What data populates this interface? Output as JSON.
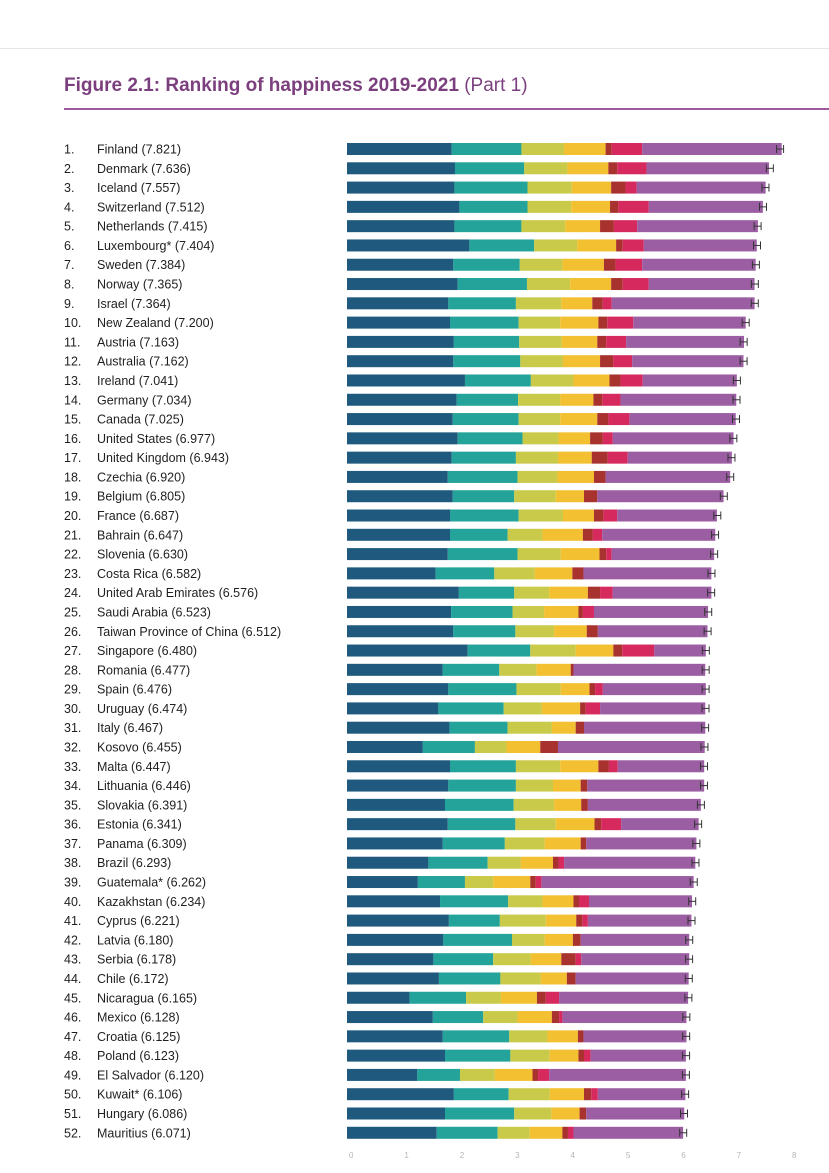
{
  "title": {
    "main": "Figure 2.1: Ranking of happiness 2019-2021",
    "part": "(Part 1)"
  },
  "colors": {
    "title": "#7b3f7e",
    "segments": [
      "#1f5a7e",
      "#23a39a",
      "#c9c94a",
      "#f2c030",
      "#a8322e",
      "#d62a5f",
      "#9b5ea3"
    ],
    "error_bar": "#333333"
  },
  "chart_data": {
    "type": "bar",
    "orientation": "horizontal",
    "stacked": true,
    "x_ticks": [
      "0",
      "1",
      "2",
      "3",
      "4",
      "5",
      "6",
      "7",
      "8"
    ],
    "xlim": [
      0,
      8
    ],
    "rows": [
      {
        "rank": "1.",
        "label": "Finland (7.821)",
        "value": 7.821,
        "segments": [
          1.89,
          1.26,
          0.77,
          0.75,
          0.11,
          0.55,
          2.52
        ]
      },
      {
        "rank": "2.",
        "label": "Denmark (7.636)",
        "value": 7.636,
        "segments": [
          1.95,
          1.25,
          0.78,
          0.74,
          0.16,
          0.53,
          2.21
        ]
      },
      {
        "rank": "3.",
        "label": "Iceland (7.557)",
        "value": 7.557,
        "segments": [
          1.94,
          1.32,
          0.8,
          0.71,
          0.26,
          0.2,
          2.33
        ]
      },
      {
        "rank": "4.",
        "label": "Switzerland (7.512)",
        "value": 7.512,
        "segments": [
          2.03,
          1.23,
          0.79,
          0.7,
          0.15,
          0.55,
          2.06
        ]
      },
      {
        "rank": "5.",
        "label": "Netherlands (7.415)",
        "value": 7.415,
        "segments": [
          1.94,
          1.21,
          0.79,
          0.63,
          0.25,
          0.42,
          2.18
        ]
      },
      {
        "rank": "6.",
        "label": "Luxembourg* (7.404)",
        "value": 7.404,
        "segments": [
          2.21,
          1.17,
          0.78,
          0.7,
          0.12,
          0.38,
          2.04
        ]
      },
      {
        "rank": "7.",
        "label": "Sweden (7.384)",
        "value": 7.384,
        "segments": [
          1.92,
          1.2,
          0.77,
          0.75,
          0.21,
          0.48,
          2.05
        ]
      },
      {
        "rank": "8.",
        "label": "Norway (7.365)",
        "value": 7.365,
        "segments": [
          2.0,
          1.25,
          0.78,
          0.74,
          0.21,
          0.47,
          1.91
        ]
      },
      {
        "rank": "9.",
        "label": "Israel (7.364)",
        "value": 7.364,
        "segments": [
          1.83,
          1.22,
          0.82,
          0.56,
          0.19,
          0.16,
          2.58
        ]
      },
      {
        "rank": "10.",
        "label": "New Zealand (7.200)",
        "value": 7.2,
        "segments": [
          1.86,
          1.24,
          0.75,
          0.69,
          0.16,
          0.47,
          2.03
        ]
      },
      {
        "rank": "11.",
        "label": "Austria (7.163)",
        "value": 7.163,
        "segments": [
          1.93,
          1.18,
          0.77,
          0.64,
          0.16,
          0.36,
          2.13
        ]
      },
      {
        "rank": "12.",
        "label": "Australia (7.162)",
        "value": 7.162,
        "segments": [
          1.92,
          1.21,
          0.77,
          0.67,
          0.24,
          0.34,
          2.01
        ]
      },
      {
        "rank": "13.",
        "label": "Ireland (7.041)",
        "value": 7.041,
        "segments": [
          2.13,
          1.19,
          0.77,
          0.65,
          0.2,
          0.4,
          1.7
        ]
      },
      {
        "rank": "14.",
        "label": "Germany (7.034)",
        "value": 7.034,
        "segments": [
          1.98,
          1.11,
          0.76,
          0.6,
          0.16,
          0.33,
          2.09
        ]
      },
      {
        "rank": "15.",
        "label": "Canada (7.025)",
        "value": 7.025,
        "segments": [
          1.91,
          1.19,
          0.75,
          0.67,
          0.2,
          0.38,
          1.92
        ]
      },
      {
        "rank": "16.",
        "label": "United States (6.977)",
        "value": 6.977,
        "segments": [
          2.0,
          1.17,
          0.65,
          0.57,
          0.23,
          0.18,
          2.18
        ]
      },
      {
        "rank": "17.",
        "label": "United Kingdom (6.943)",
        "value": 6.943,
        "segments": [
          1.89,
          1.16,
          0.76,
          0.61,
          0.29,
          0.36,
          1.88
        ]
      },
      {
        "rank": "18.",
        "label": "Czechia (6.920)",
        "value": 6.92,
        "segments": [
          1.82,
          1.26,
          0.72,
          0.66,
          0.21,
          0.0,
          2.25
        ]
      },
      {
        "rank": "19.",
        "label": "Belgium (6.805)",
        "value": 6.805,
        "segments": [
          1.91,
          1.11,
          0.75,
          0.51,
          0.24,
          0.0,
          2.28
        ]
      },
      {
        "rank": "20.",
        "label": "France (6.687)",
        "value": 6.687,
        "segments": [
          1.86,
          1.24,
          0.8,
          0.56,
          0.17,
          0.25,
          1.8
        ]
      },
      {
        "rank": "21.",
        "label": "Bahrain (6.647)",
        "value": 6.647,
        "segments": [
          1.86,
          1.04,
          0.63,
          0.73,
          0.18,
          0.17,
          2.04
        ]
      },
      {
        "rank": "22.",
        "label": "Slovenia (6.630)",
        "value": 6.63,
        "segments": [
          1.82,
          1.26,
          0.78,
          0.7,
          0.12,
          0.1,
          1.85
        ]
      },
      {
        "rank": "23.",
        "label": "Costa Rica (6.582)",
        "value": 6.582,
        "segments": [
          1.6,
          1.06,
          0.73,
          0.68,
          0.2,
          0.0,
          2.31
        ]
      },
      {
        "rank": "24.",
        "label": "United Arab Emirates (6.576)",
        "value": 6.576,
        "segments": [
          2.02,
          1.0,
          0.63,
          0.7,
          0.22,
          0.23,
          1.78
        ]
      },
      {
        "rank": "25.",
        "label": "Saudi Arabia (6.523)",
        "value": 6.523,
        "segments": [
          1.88,
          1.11,
          0.57,
          0.62,
          0.08,
          0.2,
          2.06
        ]
      },
      {
        "rank": "26.",
        "label": "Taiwan Province of China (6.512)",
        "value": 6.512,
        "segments": [
          1.92,
          1.12,
          0.7,
          0.59,
          0.2,
          0.0,
          1.98
        ]
      },
      {
        "rank": "27.",
        "label": "Singapore (6.480)",
        "value": 6.48,
        "segments": [
          2.18,
          1.13,
          0.82,
          0.68,
          0.16,
          0.58,
          0.93
        ]
      },
      {
        "rank": "28.",
        "label": "Romania (6.477)",
        "value": 6.477,
        "segments": [
          1.73,
          1.02,
          0.67,
          0.62,
          0.05,
          0.0,
          2.38
        ]
      },
      {
        "rank": "29.",
        "label": "Spain (6.476)",
        "value": 6.476,
        "segments": [
          1.83,
          1.23,
          0.8,
          0.52,
          0.1,
          0.14,
          1.86
        ]
      },
      {
        "rank": "30.",
        "label": "Uruguay (6.474)",
        "value": 6.474,
        "segments": [
          1.65,
          1.18,
          0.69,
          0.69,
          0.1,
          0.26,
          1.9
        ]
      },
      {
        "rank": "31.",
        "label": "Italy (6.467)",
        "value": 6.467,
        "segments": [
          1.85,
          1.05,
          0.8,
          0.43,
          0.15,
          0.0,
          2.19
        ]
      },
      {
        "rank": "32.",
        "label": "Kosovo (6.455)",
        "value": 6.455,
        "segments": [
          1.37,
          0.94,
          0.57,
          0.61,
          0.32,
          0.0,
          2.65
        ]
      },
      {
        "rank": "33.",
        "label": "Malta (6.447)",
        "value": 6.447,
        "segments": [
          1.86,
          1.19,
          0.8,
          0.69,
          0.19,
          0.16,
          1.56
        ]
      },
      {
        "rank": "34.",
        "label": "Lithuania (6.446)",
        "value": 6.446,
        "segments": [
          1.83,
          1.22,
          0.67,
          0.5,
          0.12,
          0.0,
          2.11
        ]
      },
      {
        "rank": "35.",
        "label": "Slovakia (6.391)",
        "value": 6.391,
        "segments": [
          1.77,
          1.24,
          0.73,
          0.49,
          0.12,
          0.0,
          2.04
        ]
      },
      {
        "rank": "36.",
        "label": "Estonia (6.341)",
        "value": 6.341,
        "segments": [
          1.82,
          1.22,
          0.73,
          0.7,
          0.12,
          0.36,
          1.4
        ]
      },
      {
        "rank": "37.",
        "label": "Panama (6.309)",
        "value": 6.309,
        "segments": [
          1.73,
          1.12,
          0.72,
          0.65,
          0.1,
          0.0,
          1.99
        ]
      },
      {
        "rank": "38.",
        "label": "Brazil (6.293)",
        "value": 6.293,
        "segments": [
          1.47,
          1.07,
          0.6,
          0.58,
          0.1,
          0.1,
          2.37
        ]
      },
      {
        "rank": "39.",
        "label": "Guatemala* (6.262)",
        "value": 6.262,
        "segments": [
          1.28,
          0.85,
          0.51,
          0.67,
          0.1,
          0.1,
          2.75
        ]
      },
      {
        "rank": "40.",
        "label": "Kazakhstan (6.234)",
        "value": 6.234,
        "segments": [
          1.68,
          1.23,
          0.62,
          0.56,
          0.1,
          0.18,
          1.86
        ]
      },
      {
        "rank": "41.",
        "label": "Cyprus (6.221)",
        "value": 6.221,
        "segments": [
          1.84,
          0.92,
          0.83,
          0.55,
          0.11,
          0.1,
          1.87
        ]
      },
      {
        "rank": "42.",
        "label": "Latvia (6.180)",
        "value": 6.18,
        "segments": [
          1.74,
          1.24,
          0.59,
          0.51,
          0.14,
          0.0,
          1.96
        ]
      },
      {
        "rank": "43.",
        "label": "Serbia (6.178)",
        "value": 6.178,
        "segments": [
          1.56,
          1.08,
          0.68,
          0.55,
          0.26,
          0.1,
          1.95
        ]
      },
      {
        "rank": "44.",
        "label": "Chile (6.172)",
        "value": 6.172,
        "segments": [
          1.66,
          1.11,
          0.73,
          0.47,
          0.16,
          0.0,
          2.04
        ]
      },
      {
        "rank": "45.",
        "label": "Nicaragua (6.165)",
        "value": 6.165,
        "segments": [
          1.13,
          1.02,
          0.63,
          0.65,
          0.16,
          0.24,
          2.33
        ]
      },
      {
        "rank": "46.",
        "label": "Mexico (6.128)",
        "value": 6.128,
        "segments": [
          1.55,
          0.91,
          0.62,
          0.62,
          0.13,
          0.06,
          2.24
        ]
      },
      {
        "rank": "47.",
        "label": "Croatia (6.125)",
        "value": 6.125,
        "segments": [
          1.73,
          1.2,
          0.69,
          0.55,
          0.1,
          0.0,
          1.86
        ]
      },
      {
        "rank": "48.",
        "label": "Poland (6.123)",
        "value": 6.123,
        "segments": [
          1.77,
          1.18,
          0.71,
          0.52,
          0.1,
          0.12,
          1.72
        ]
      },
      {
        "rank": "49.",
        "label": "El Salvador (6.120)",
        "value": 6.12,
        "segments": [
          1.27,
          0.77,
          0.63,
          0.68,
          0.1,
          0.2,
          2.47
        ]
      },
      {
        "rank": "50.",
        "label": "Kuwait* (6.106)",
        "value": 6.106,
        "segments": [
          1.93,
          0.99,
          0.74,
          0.62,
          0.13,
          0.12,
          1.58
        ]
      },
      {
        "rank": "51.",
        "label": "Hungary (6.086)",
        "value": 6.086,
        "segments": [
          1.77,
          1.25,
          0.67,
          0.51,
          0.12,
          0.0,
          1.77
        ]
      },
      {
        "rank": "52.",
        "label": "Mauritius (6.071)",
        "value": 6.071,
        "segments": [
          1.62,
          1.1,
          0.58,
          0.59,
          0.1,
          0.1,
          1.98
        ]
      }
    ]
  }
}
